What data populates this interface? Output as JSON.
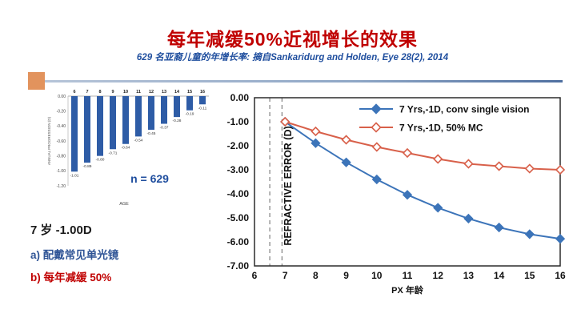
{
  "slide": {
    "title": "每年减缓50%近视增长的效果",
    "subtitle": "629 名亚裔儿童的年增长率: 摘自Sankaridurg and Holden, Eye 28(2), 2014"
  },
  "notes": {
    "baseline": "7 岁 -1.00D",
    "option_a": "a) 配戴常见单光镜",
    "option_b": "b) 每年减缓 50%"
  },
  "colors": {
    "title_red": "#C00000",
    "subtitle_blue": "#1F4E9E",
    "note_blue": "#2F5496",
    "note_red": "#C00000",
    "bar_blue": "#2E5CA6",
    "series_blue": "#3C74B9",
    "series_red": "#D8604A",
    "accent_orange": "#E2935D",
    "axis_text": "#111111",
    "dashed_line_gray": "#7F7F7F"
  },
  "chart_data": [
    {
      "id": "annual-progression-bar",
      "type": "bar",
      "title": "",
      "categories": [
        "6",
        "7",
        "8",
        "9",
        "10",
        "11",
        "12",
        "13",
        "14",
        "15",
        "16"
      ],
      "values": [
        -1.01,
        -0.89,
        -0.8,
        -0.71,
        -0.64,
        -0.54,
        -0.45,
        -0.37,
        -0.28,
        -0.19,
        -0.11
      ],
      "bar_labels": [
        "-1.01",
        "-0.89",
        "-0.80",
        "-0.71",
        "-0.64",
        "-0.54",
        "-0.45",
        "-0.37",
        "-0.28",
        "-0.19",
        "-0.11"
      ],
      "xlabel": "AGE",
      "ylabel": "ANNUAL PROGRESSION (D)",
      "ylim": [
        -1.2,
        0.0
      ],
      "yticks": [
        "0.00",
        "-0.20",
        "-0.40",
        "-0.60",
        "-0.80",
        "-1.00",
        "-1.20"
      ],
      "grid": false,
      "annotation": "n = 629"
    },
    {
      "id": "refractive-error-line",
      "type": "line",
      "x": [
        7,
        8,
        9,
        10,
        11,
        12,
        13,
        14,
        15,
        16
      ],
      "series": [
        {
          "name": "7 Yrs,-1D, conv single vision",
          "marker": "filled-diamond",
          "color": "#3C74B9",
          "values": [
            -1.0,
            -1.89,
            -2.69,
            -3.4,
            -4.04,
            -4.58,
            -5.03,
            -5.4,
            -5.68,
            -5.87
          ]
        },
        {
          "name": "7 Yrs,-1D, 50% MC",
          "marker": "open-diamond",
          "color": "#D8604A",
          "values": [
            -1.0,
            -1.4,
            -1.75,
            -2.05,
            -2.3,
            -2.55,
            -2.75,
            -2.85,
            -2.95,
            -3.0
          ]
        }
      ],
      "xlabel": "PX 年龄",
      "ylabel": "REFRACTIVE ERROR (D)",
      "xlim": [
        6,
        16
      ],
      "ylim": [
        -7,
        0
      ],
      "xticks": [
        "6",
        "7",
        "8",
        "9",
        "10",
        "11",
        "12",
        "13",
        "14",
        "15",
        "16"
      ],
      "yticks": [
        "0.00",
        "-1.00",
        "-2.00",
        "-3.00",
        "-4.00",
        "-5.00",
        "-6.00",
        "-7.00"
      ],
      "grid": false,
      "legend_position": "top-right",
      "dashed_vlines": [
        6.5,
        6.9
      ]
    }
  ]
}
